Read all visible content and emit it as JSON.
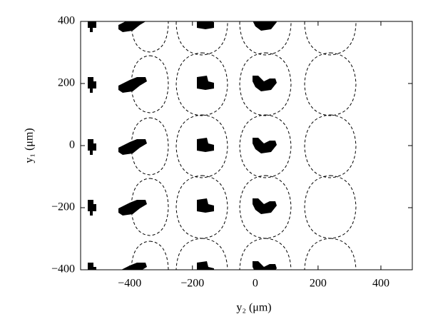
{
  "chart_data": {
    "type": "field-map",
    "xlabel": "y₂ (μm)",
    "ylabel": "y₁ (μm)",
    "xlim": [
      -556,
      500
    ],
    "ylim": [
      -400,
      400
    ],
    "xticks": [
      {
        "value": -400,
        "label": "−400"
      },
      {
        "value": -200,
        "label": "−200"
      },
      0,
      200,
      400
    ],
    "yticks": [
      {
        "value": -400,
        "label": "−400"
      },
      {
        "value": -200,
        "label": "−200"
      },
      0,
      200,
      400
    ]
  }
}
